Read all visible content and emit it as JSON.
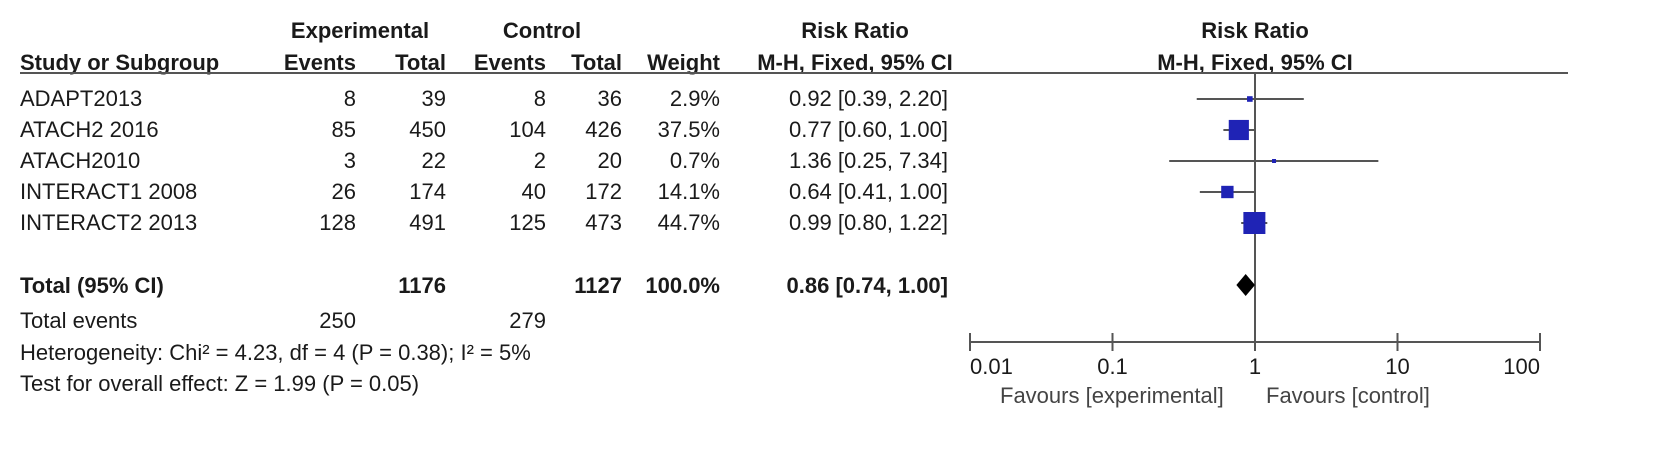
{
  "headers": {
    "experimental": "Experimental",
    "control": "Control",
    "risk_ratio_table": "Risk Ratio",
    "risk_ratio_plot": "Risk Ratio",
    "study": "Study or Subgroup",
    "exp_events": "Events",
    "exp_total": "Total",
    "ctl_events": "Events",
    "ctl_total": "Total",
    "weight": "Weight",
    "method_table": "M-H, Fixed, 95% CI",
    "method_plot": "M-H, Fixed, 95% CI"
  },
  "studies": [
    {
      "name": "ADAPT2013",
      "exp_events": "8",
      "exp_total": "39",
      "ctl_events": "8",
      "ctl_total": "36",
      "weight": "2.9%",
      "ci_text": "0.92 [0.39, 2.20]"
    },
    {
      "name": "ATACH2 2016",
      "exp_events": "85",
      "exp_total": "450",
      "ctl_events": "104",
      "ctl_total": "426",
      "weight": "37.5%",
      "ci_text": "0.77 [0.60, 1.00]"
    },
    {
      "name": "ATACH2010",
      "exp_events": "3",
      "exp_total": "22",
      "ctl_events": "2",
      "ctl_total": "20",
      "weight": "0.7%",
      "ci_text": "1.36 [0.25, 7.34]"
    },
    {
      "name": "INTERACT1 2008",
      "exp_events": "26",
      "exp_total": "174",
      "ctl_events": "40",
      "ctl_total": "172",
      "weight": "14.1%",
      "ci_text": "0.64 [0.41, 1.00]"
    },
    {
      "name": "INTERACT2 2013",
      "exp_events": "128",
      "exp_total": "491",
      "ctl_events": "125",
      "ctl_total": "473",
      "weight": "44.7%",
      "ci_text": "0.99 [0.80, 1.22]"
    }
  ],
  "total": {
    "label": "Total (95% CI)",
    "exp_total": "1176",
    "ctl_total": "1127",
    "weight": "100.0%",
    "ci_text": "0.86 [0.74, 1.00]"
  },
  "total_events": {
    "label": "Total events",
    "exp": "250",
    "ctl": "279"
  },
  "heterogeneity": "Heterogeneity: Chi² = 4.23, df = 4 (P = 0.38); I² = 5%",
  "overall_effect": "Test for overall effect: Z = 1.99 (P = 0.05)",
  "favours_left": "Favours [experimental]",
  "favours_right": "Favours [control]",
  "colors": {
    "marker": "#1f23b5",
    "line": "#555555",
    "diamond": "#000000"
  },
  "chart_data": {
    "type": "scatter",
    "plot_kind": "forest",
    "xscale": "log",
    "xlim": [
      0.01,
      100
    ],
    "xticks": [
      0.01,
      0.1,
      1,
      10,
      100
    ],
    "xtick_labels": [
      "0.01",
      "0.1",
      "1",
      "10",
      "100"
    ],
    "reference_line": 1,
    "series": [
      {
        "study": "ADAPT2013",
        "rr": 0.92,
        "lo": 0.39,
        "hi": 2.2,
        "weight": 2.9
      },
      {
        "study": "ATACH2 2016",
        "rr": 0.77,
        "lo": 0.6,
        "hi": 1.0,
        "weight": 37.5
      },
      {
        "study": "ATACH2010",
        "rr": 1.36,
        "lo": 0.25,
        "hi": 7.34,
        "weight": 0.7
      },
      {
        "study": "INTERACT1 2008",
        "rr": 0.64,
        "lo": 0.41,
        "hi": 1.0,
        "weight": 14.1
      },
      {
        "study": "INTERACT2 2013",
        "rr": 0.99,
        "lo": 0.8,
        "hi": 1.22,
        "weight": 44.7
      }
    ],
    "pooled": {
      "rr": 0.86,
      "lo": 0.74,
      "hi": 1.0
    }
  }
}
